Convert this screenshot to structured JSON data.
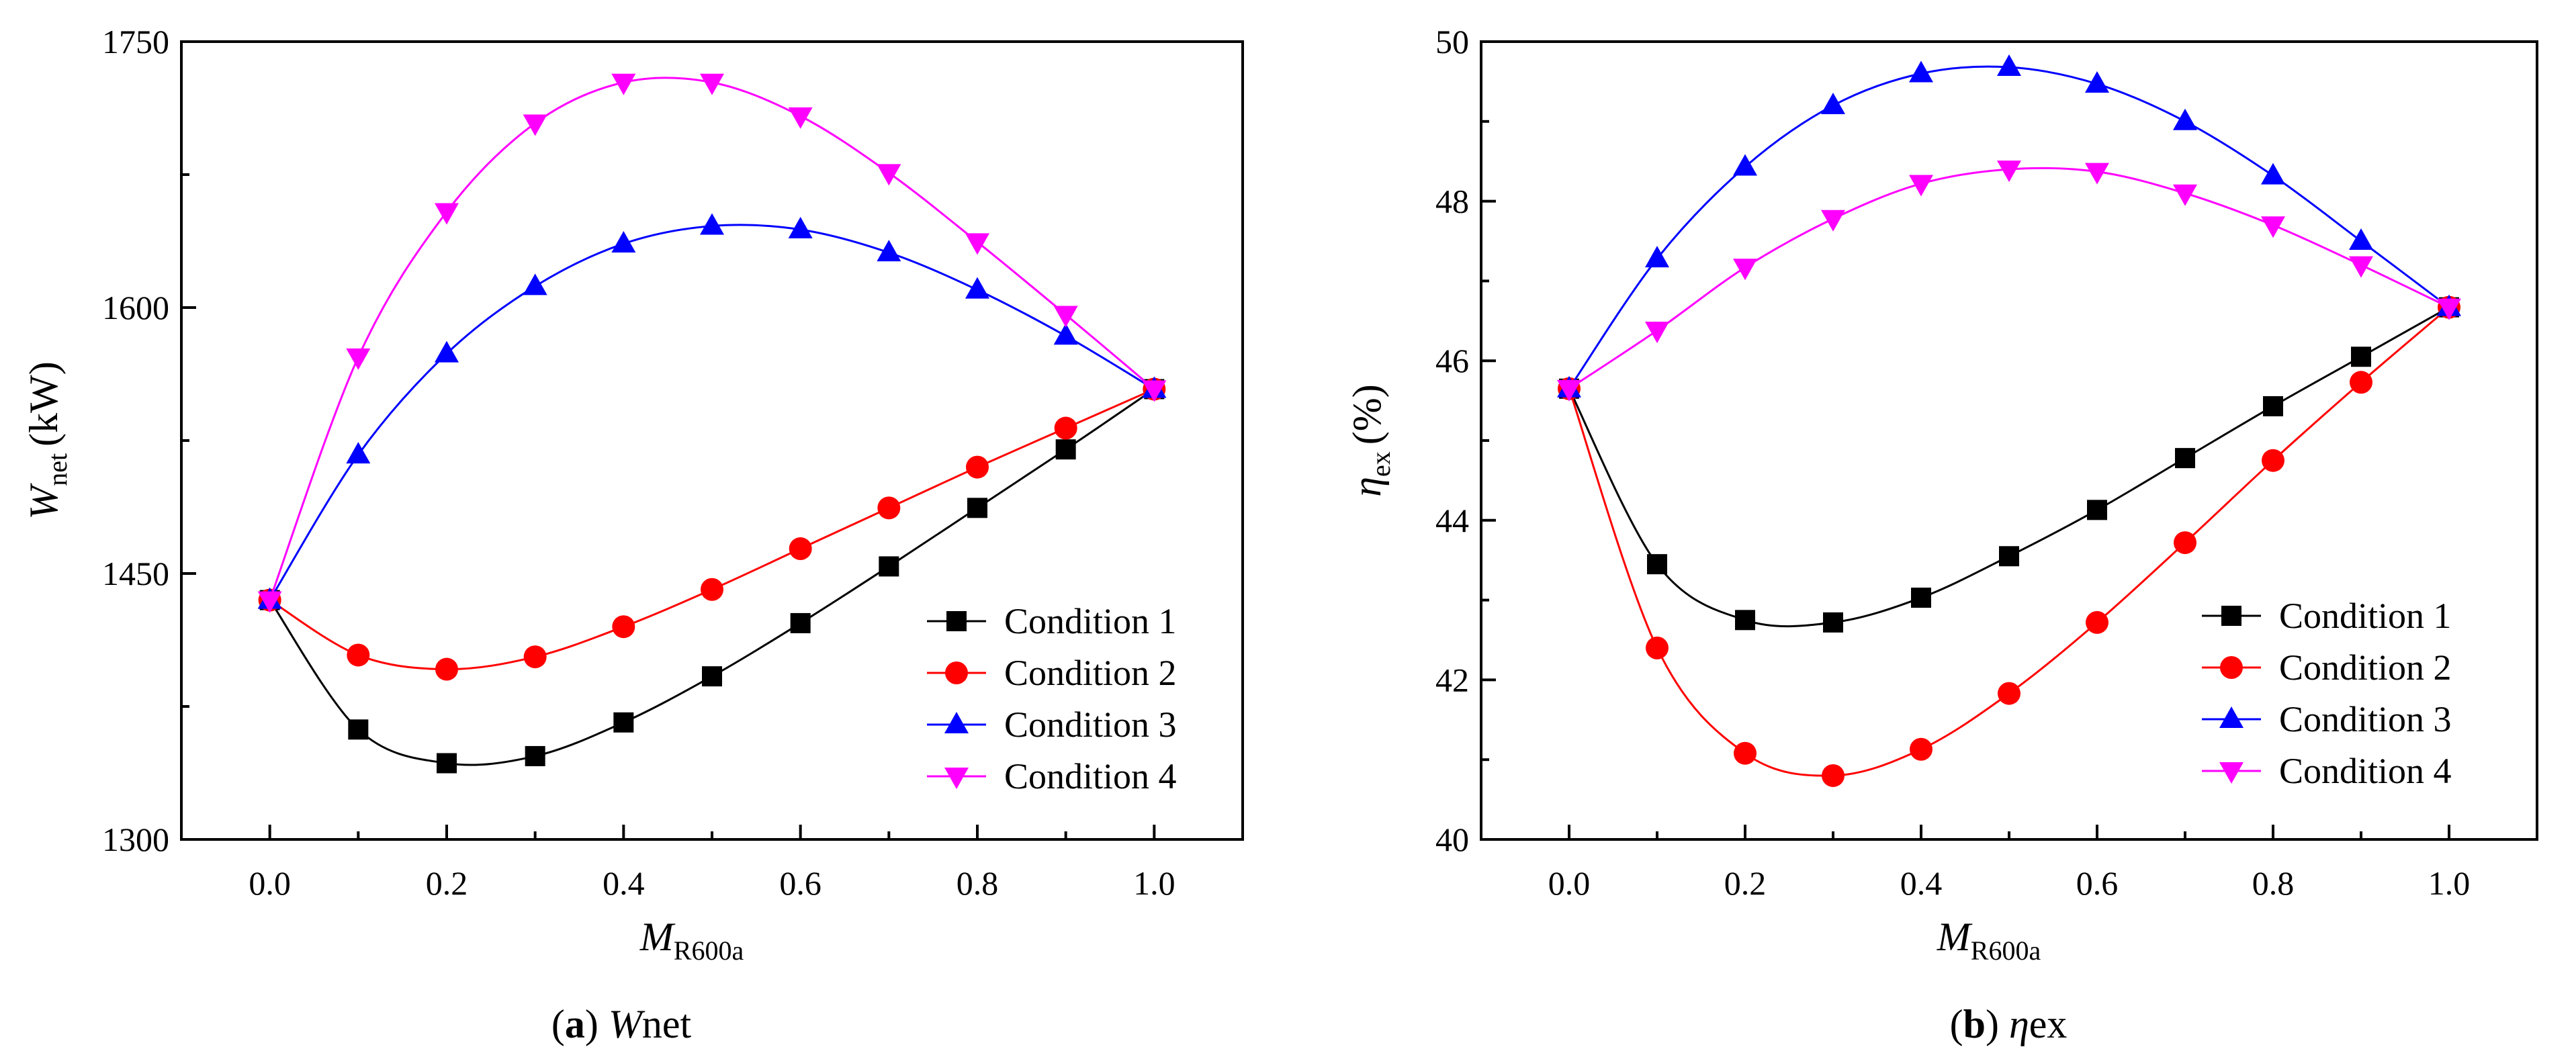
{
  "chart_data": [
    {
      "type": "line",
      "panel": "a",
      "caption": {
        "letter": "a",
        "symbol": "W",
        "subscript": "net"
      },
      "xlabel": {
        "symbol": "M",
        "subscript": "R600a"
      },
      "ylabel": {
        "symbol": "W",
        "subscript": "net",
        "unit": "(kW)"
      },
      "x": [
        0.0,
        0.1,
        0.2,
        0.3,
        0.4,
        0.5,
        0.6,
        0.7,
        0.8,
        0.9,
        1.0
      ],
      "xlim": [
        -0.1,
        1.1
      ],
      "ylim": [
        1300,
        1750
      ],
      "xticks": [
        0.0,
        0.2,
        0.4,
        0.6,
        0.8,
        1.0
      ],
      "xtick_labels": [
        "0.0",
        "0.2",
        "0.4",
        "0.6",
        "0.8",
        "1.0"
      ],
      "yticks": [
        1300,
        1450,
        1600,
        1750
      ],
      "ytick_labels": [
        "1300",
        "1450",
        "1600",
        "1750"
      ],
      "legend_position": "bottom-right",
      "series": [
        {
          "name": "Condition 1",
          "color": "#000000",
          "marker": "square",
          "values": [
            1435,
            1362,
            1343,
            1347,
            1366,
            1392,
            1422,
            1454,
            1487,
            1520,
            1554
          ]
        },
        {
          "name": "Condition 2",
          "color": "#ff0000",
          "marker": "circle",
          "values": [
            1435,
            1404,
            1396,
            1403,
            1420,
            1441,
            1464,
            1487,
            1510,
            1532,
            1554
          ]
        },
        {
          "name": "Condition 3",
          "color": "#0000ff",
          "marker": "triangle-up",
          "values": [
            1435,
            1517,
            1574,
            1612,
            1636,
            1646,
            1644,
            1631,
            1610,
            1584,
            1554
          ]
        },
        {
          "name": "Condition 4",
          "color": "#ff00ff",
          "marker": "triangle-down",
          "values": [
            1435,
            1572,
            1654,
            1704,
            1727,
            1727,
            1708,
            1676,
            1637,
            1596,
            1554
          ]
        }
      ]
    },
    {
      "type": "line",
      "panel": "b",
      "caption": {
        "letter": "b",
        "symbol": "η",
        "subscript": "ex"
      },
      "xlabel": {
        "symbol": "M",
        "subscript": "R600a"
      },
      "ylabel": {
        "symbol": "η",
        "subscript": "ex",
        "unit": "(%)"
      },
      "x": [
        0.0,
        0.1,
        0.2,
        0.3,
        0.4,
        0.5,
        0.6,
        0.7,
        0.8,
        0.9,
        1.0
      ],
      "xlim": [
        -0.1,
        1.1
      ],
      "ylim": [
        40,
        50
      ],
      "xticks": [
        0.0,
        0.2,
        0.4,
        0.6,
        0.8,
        1.0
      ],
      "xtick_labels": [
        "0.0",
        "0.2",
        "0.4",
        "0.6",
        "0.8",
        "1.0"
      ],
      "yticks": [
        40,
        42,
        44,
        46,
        48,
        50
      ],
      "ytick_labels": [
        "40",
        "42",
        "44",
        "46",
        "48",
        "50"
      ],
      "legend_position": "bottom-right",
      "series": [
        {
          "name": "Condition 1",
          "color": "#000000",
          "marker": "square",
          "values": [
            45.65,
            43.45,
            42.75,
            42.72,
            43.03,
            43.55,
            44.13,
            44.78,
            45.43,
            46.05,
            46.67
          ]
        },
        {
          "name": "Condition 2",
          "color": "#ff0000",
          "marker": "circle",
          "values": [
            45.65,
            42.4,
            41.08,
            40.8,
            41.13,
            41.83,
            42.72,
            43.72,
            44.75,
            45.73,
            46.67
          ]
        },
        {
          "name": "Condition 3",
          "color": "#0000ff",
          "marker": "triangle-up",
          "values": [
            45.65,
            47.28,
            48.43,
            49.2,
            49.6,
            49.68,
            49.47,
            49.0,
            48.32,
            47.5,
            46.67
          ]
        },
        {
          "name": "Condition 4",
          "color": "#ff00ff",
          "marker": "triangle-down",
          "values": [
            45.65,
            46.38,
            47.17,
            47.78,
            48.22,
            48.4,
            48.37,
            48.1,
            47.7,
            47.2,
            46.67
          ]
        }
      ]
    }
  ]
}
